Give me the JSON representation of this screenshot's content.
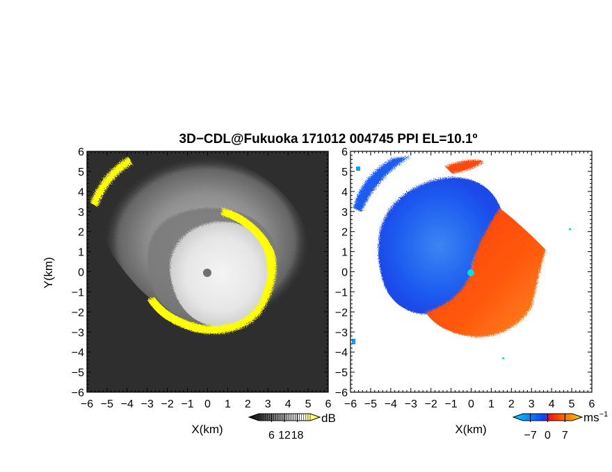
{
  "figure": {
    "title": "3D−CDL@Fukuoka 171012 004745 PPI EL=10.1º"
  },
  "chart_data": [
    {
      "type": "heatmap",
      "panel": "reflectivity",
      "xlabel": "X(km)",
      "ylabel": "Y(km)",
      "xlim": [
        -6,
        6
      ],
      "ylim": [
        -6,
        6
      ],
      "xticks": [
        -6,
        -5,
        -4,
        -3,
        -2,
        -1,
        0,
        1,
        2,
        3,
        4,
        5,
        6
      ],
      "yticks": [
        -6,
        -5,
        -4,
        -3,
        -2,
        -1,
        0,
        1,
        2,
        3,
        4,
        5,
        6
      ],
      "background_color": "#2f2f2f",
      "echo": {
        "center": [
          0.3,
          0.6
        ],
        "inner_bright_radius_km": 2.6,
        "outer_haze_radius_km": 5.2,
        "edge_color": "#ffff00",
        "center_marker_color": "#707070"
      },
      "colorbar": {
        "unit": "dB",
        "ticks": [
          6,
          12,
          18
        ],
        "tick_labels": [
          "6",
          "12",
          "18"
        ],
        "min": 0,
        "max": 24,
        "colors": [
          "#000000",
          "#ffffff",
          "#ffff00"
        ]
      }
    },
    {
      "type": "heatmap",
      "panel": "radial-velocity",
      "xlabel": "X(km)",
      "xlim": [
        -6,
        6
      ],
      "ylim": [
        -6,
        6
      ],
      "xticks": [
        -6,
        -5,
        -4,
        -3,
        -2,
        -1,
        0,
        1,
        2,
        3,
        4,
        5,
        6
      ],
      "yticks": [
        -6,
        -5,
        -4,
        -3,
        -2,
        -1,
        0,
        1,
        2,
        3,
        4,
        5,
        6
      ],
      "background_color": "#ffffff",
      "fields": {
        "approaching_color": "#1a5cf0",
        "receding_color": "#ff4a10",
        "center_marker_color": "#00e0e0"
      },
      "colorbar": {
        "unit": "ms",
        "unit_exponent": "−1",
        "ticks": [
          -7,
          0,
          7
        ],
        "tick_labels": [
          "−7",
          "0",
          "7"
        ],
        "min": -10,
        "max": 10,
        "colors": [
          "#00d0ff",
          "#1040ff",
          "#ff2000",
          "#ffd000"
        ]
      }
    }
  ]
}
